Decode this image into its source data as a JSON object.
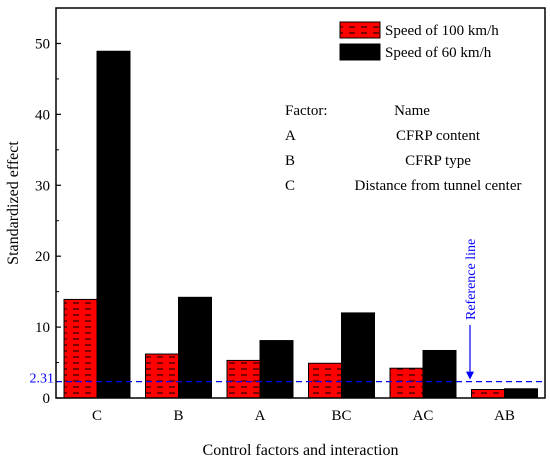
{
  "chart_data": {
    "type": "bar",
    "categories": [
      "C",
      "B",
      "A",
      "BC",
      "AC",
      "AB"
    ],
    "series": [
      {
        "name": "Speed of 100 km/h",
        "values": [
          13.9,
          6.2,
          5.3,
          4.9,
          4.2,
          1.2
        ],
        "color": "#ff0000",
        "pattern": "dashes"
      },
      {
        "name": "Speed of 60 km/h",
        "values": [
          48.9,
          14.2,
          8.1,
          12.0,
          6.7,
          1.3
        ],
        "color": "#000000",
        "pattern": "solid"
      }
    ],
    "xlabel": "Control factors and interaction",
    "ylabel": "Standardized effect",
    "ylim": [
      0,
      55
    ],
    "yticks": [
      0,
      10,
      20,
      30,
      40,
      50
    ],
    "reference_line": {
      "value": 2.31,
      "label": "2.31",
      "annotation": "Reference line",
      "color": "#0000ff",
      "style": "dashed"
    },
    "legend_position": "top-right",
    "factor_table": {
      "header": [
        "Factor:",
        "Name"
      ],
      "rows": [
        [
          "A",
          "CFRP content"
        ],
        [
          "B",
          "CFRP type"
        ],
        [
          "C",
          "Distance from tunnel center"
        ]
      ]
    }
  }
}
